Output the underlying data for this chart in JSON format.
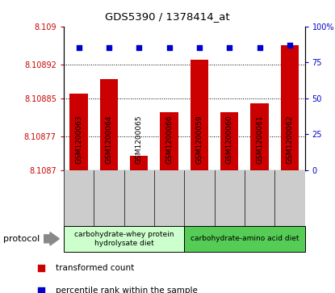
{
  "title": "GDS5390 / 1378414_at",
  "samples": [
    "GSM1200063",
    "GSM1200064",
    "GSM1200065",
    "GSM1200066",
    "GSM1200059",
    "GSM1200060",
    "GSM1200061",
    "GSM1200062"
  ],
  "red_values": [
    8.10886,
    8.10889,
    8.10873,
    8.10882,
    8.10893,
    8.10882,
    8.10884,
    8.10896
  ],
  "blue_values": [
    85,
    85,
    85,
    85,
    85,
    85,
    85,
    87
  ],
  "ylim_left": [
    8.1087,
    8.109
  ],
  "ylim_right": [
    0,
    100
  ],
  "yticks_left": [
    8.1087,
    8.10877,
    8.10885,
    8.10892,
    8.109
  ],
  "yticks_right": [
    0,
    25,
    50,
    75,
    100
  ],
  "ytick_labels_left": [
    "8.1087",
    "8.10877",
    "8.10885",
    "8.10892",
    "8.109"
  ],
  "ytick_labels_right": [
    "0",
    "25",
    "50",
    "75",
    "100%"
  ],
  "group1_label": "carbohydrate-whey protein\nhydrolysate diet",
  "group2_label": "carbohydrate-amino acid diet",
  "protocol_label": "protocol",
  "legend_red": "transformed count",
  "legend_blue": "percentile rank within the sample",
  "bar_color": "#cc0000",
  "dot_color": "#0000cc",
  "group1_color": "#ccffcc",
  "group2_color": "#55cc55",
  "grid_color": "#000000",
  "sample_bg_color": "#cccccc",
  "plot_bg": "#ffffff"
}
